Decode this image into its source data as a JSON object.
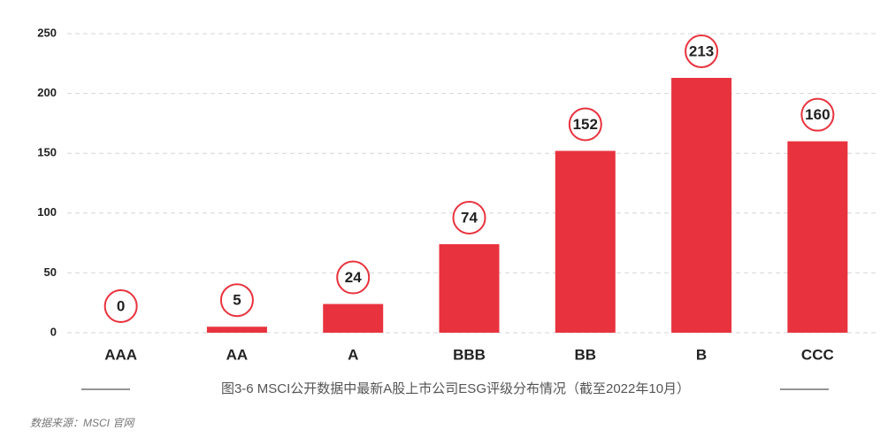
{
  "chart_data": {
    "type": "bar",
    "caption": "图3-6  MSCI公开数据中最新A股上市公司ESG评级分布情况（截至2022年10月）",
    "source": "数据来源：MSCI 官网",
    "categories": [
      "AAA",
      "AA",
      "A",
      "BBB",
      "BB",
      "B",
      "CCC"
    ],
    "values": [
      0,
      5,
      24,
      74,
      152,
      213,
      160
    ],
    "color": "#e8333e",
    "ylim": [
      0,
      250
    ],
    "yticks": [
      0,
      50,
      100,
      150,
      200,
      250
    ],
    "grid": true
  }
}
